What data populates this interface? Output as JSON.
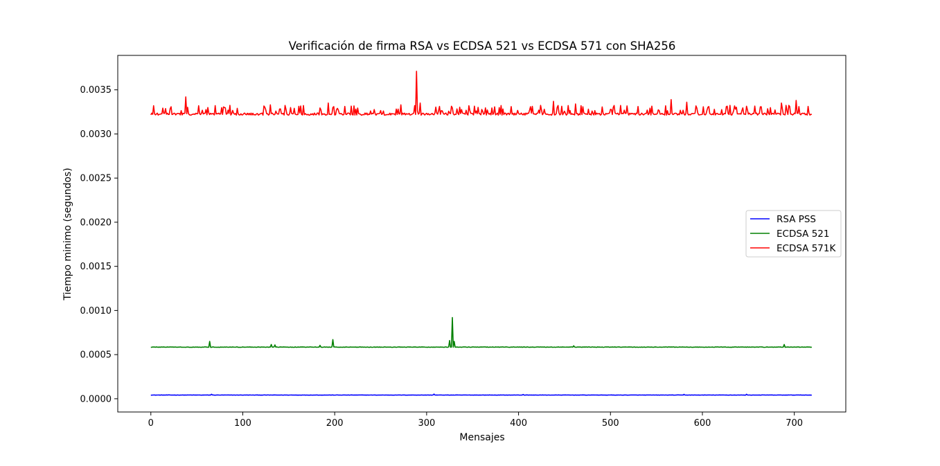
{
  "chart_data": {
    "type": "line",
    "title": "Verificación de firma RSA vs ECDSA 521 vs ECDSA 571 con SHA256",
    "xlabel": "Mensajes",
    "ylabel": "Tiempo minimo (segundos)",
    "xlim": [
      -36,
      756
    ],
    "ylim": [
      -0.00015,
      0.00389
    ],
    "xticks": [
      0,
      100,
      200,
      300,
      400,
      500,
      600,
      700
    ],
    "xtick_labels": [
      "0",
      "100",
      "200",
      "300",
      "400",
      "500",
      "600",
      "700"
    ],
    "yticks": [
      0.0,
      0.0005,
      0.001,
      0.0015,
      0.002,
      0.0025,
      0.003,
      0.0035
    ],
    "ytick_labels": [
      "0.0000",
      "0.0005",
      "0.0010",
      "0.0015",
      "0.0020",
      "0.0025",
      "0.0030",
      "0.0035"
    ],
    "grid": false,
    "legend_position": "center-right",
    "n_points": 720,
    "series": [
      {
        "name": "RSA PSS",
        "color": "#0000ff",
        "baseline": 4.2e-05,
        "noise": 1.5e-06,
        "spikes": [
          [
            66,
            5.1e-05
          ],
          [
            308,
            5.3e-05
          ],
          [
            405,
            4.9e-05
          ],
          [
            580,
            5e-05
          ],
          [
            648,
            5.1e-05
          ]
        ]
      },
      {
        "name": "ECDSA 521",
        "color": "#008000",
        "baseline": 0.000585,
        "noise": 2.5e-06,
        "spikes": [
          [
            64,
            0.00065
          ],
          [
            131,
            0.000615
          ],
          [
            135,
            0.00061
          ],
          [
            184,
            0.000605
          ],
          [
            198,
            0.00067
          ],
          [
            325,
            0.00066
          ],
          [
            328,
            0.00092
          ],
          [
            330,
            0.00065
          ],
          [
            460,
            0.0006
          ],
          [
            689,
            0.000615
          ]
        ]
      },
      {
        "name": "ECDSA 571K",
        "color": "#ff0000",
        "baseline": 0.003225,
        "noise": 1.25e-05,
        "spike_rate": 0.2,
        "spike_min": 3e-05,
        "spike_max": 0.0001,
        "spikes": [
          [
            3,
            0.00332
          ],
          [
            38,
            0.00342
          ],
          [
            52,
            0.00332
          ],
          [
            130,
            0.00333
          ],
          [
            193,
            0.00335
          ],
          [
            272,
            0.00333
          ],
          [
            289,
            0.00371
          ],
          [
            293,
            0.00335
          ],
          [
            438,
            0.00337
          ],
          [
            462,
            0.00334
          ],
          [
            566,
            0.00339
          ],
          [
            583,
            0.00336
          ],
          [
            686,
            0.00335
          ],
          [
            702,
            0.00338
          ]
        ]
      }
    ]
  }
}
